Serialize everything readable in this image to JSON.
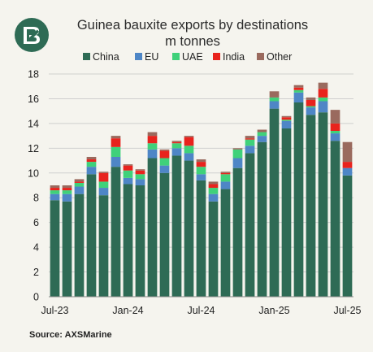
{
  "chart_data": {
    "type": "bar",
    "stacked": true,
    "title": "Guinea bauxite exports by destinations",
    "subtitle": "m tonnes",
    "source": "Source: AXSMarine",
    "ylim": [
      0,
      18
    ],
    "yticks": [
      0,
      2,
      4,
      6,
      8,
      10,
      12,
      14,
      16,
      18
    ],
    "grid": true,
    "legend_position": "top",
    "x_tick_labels": [
      "Jul-23",
      "Jan-24",
      "Jul-24",
      "Jan-25",
      "Jul-25"
    ],
    "x_tick_index": [
      0,
      6,
      12,
      18,
      24
    ],
    "categories": [
      "Jul-23",
      "Aug-23",
      "Sep-23",
      "Oct-23",
      "Nov-23",
      "Dec-23",
      "Jan-24",
      "Feb-24",
      "Mar-24",
      "Apr-24",
      "May-24",
      "Jun-24",
      "Jul-24",
      "Aug-24",
      "Sep-24",
      "Oct-24",
      "Nov-24",
      "Dec-24",
      "Jan-25",
      "Feb-25",
      "Mar-25",
      "Apr-25",
      "May-25",
      "Jun-25",
      "Jul-25"
    ],
    "series": [
      {
        "name": "China",
        "color": "#2e6b55",
        "values": [
          7.8,
          7.7,
          8.3,
          9.9,
          8.2,
          10.5,
          9.1,
          9.0,
          11.2,
          10.0,
          11.4,
          11.0,
          9.4,
          7.7,
          8.7,
          10.4,
          11.6,
          12.5,
          15.2,
          13.6,
          15.7,
          14.7,
          14.9,
          12.6,
          9.8
        ]
      },
      {
        "name": "EU",
        "color": "#4e86c6",
        "values": [
          0.5,
          0.6,
          0.6,
          0.6,
          0.6,
          0.8,
          0.5,
          0.5,
          0.7,
          0.6,
          0.6,
          0.6,
          0.5,
          0.6,
          0.6,
          0.8,
          0.6,
          0.5,
          0.6,
          0.6,
          0.8,
          0.6,
          0.9,
          0.6,
          0.6
        ]
      },
      {
        "name": "UAE",
        "color": "#3fd17a",
        "values": [
          0.3,
          0.3,
          0.3,
          0.4,
          0.5,
          0.8,
          0.6,
          0.4,
          0.5,
          0.6,
          0.4,
          0.6,
          0.6,
          0.5,
          0.6,
          0.7,
          0.5,
          0.3,
          0.3,
          0.1,
          0.2,
          0.1,
          0.3,
          0.2,
          0.0
        ]
      },
      {
        "name": "India",
        "color": "#e8231d",
        "values": [
          0.2,
          0.2,
          0.1,
          0.2,
          0.7,
          0.7,
          0.4,
          0.3,
          0.6,
          0.6,
          0.1,
          0.7,
          0.4,
          0.3,
          0.1,
          0.0,
          0.1,
          0.0,
          0.0,
          0.2,
          0.2,
          0.5,
          0.7,
          0.6,
          0.5
        ]
      },
      {
        "name": "Other",
        "color": "#9a6a5e",
        "values": [
          0.2,
          0.2,
          0.2,
          0.2,
          0.1,
          0.2,
          0.1,
          0.1,
          0.3,
          0.1,
          0.1,
          0.1,
          0.2,
          0.2,
          0.1,
          0.1,
          0.2,
          0.2,
          0.5,
          0.1,
          0.2,
          0.2,
          0.5,
          1.1,
          1.6
        ]
      }
    ]
  },
  "header": {
    "logo_alt": "bank-logo"
  }
}
